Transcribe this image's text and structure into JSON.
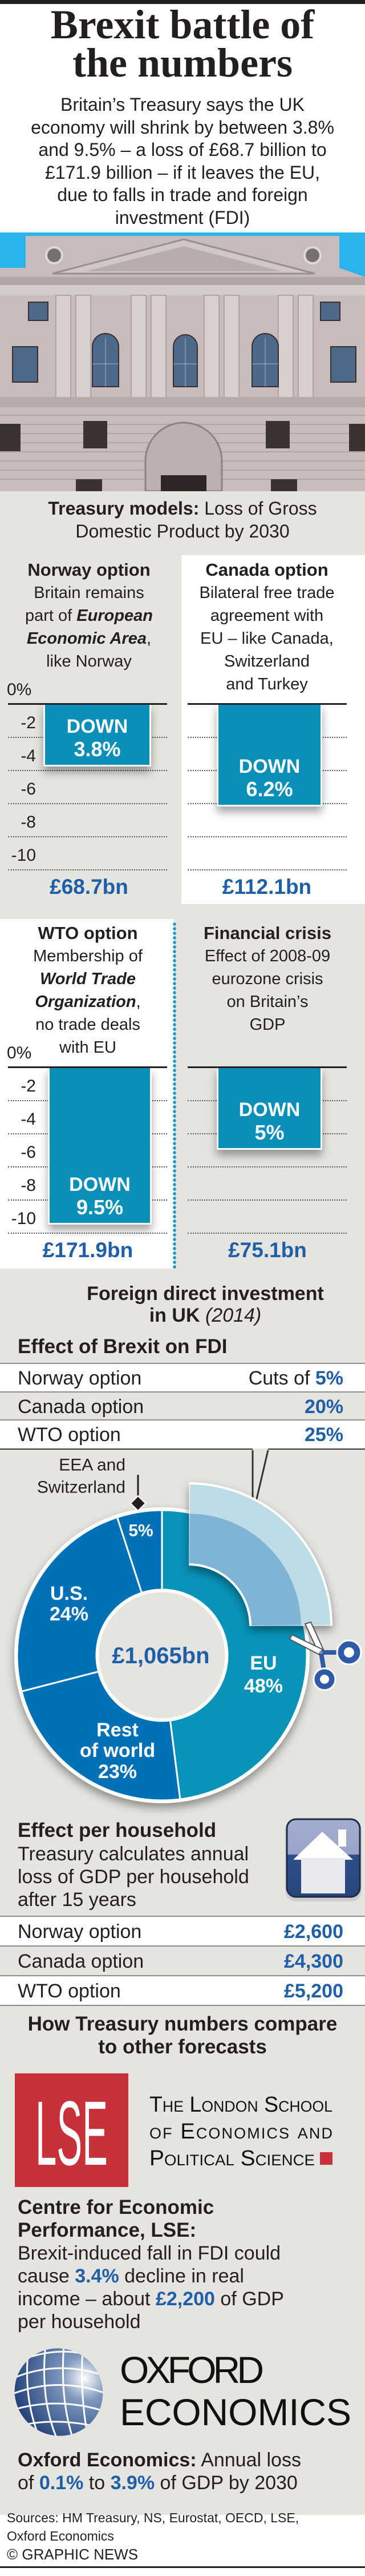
{
  "header": {
    "title_line1": "Brexit battle of",
    "title_line2": "the numbers",
    "subtitle_lines": [
      "Britain’s Treasury says the UK",
      "economy will shrink by between 3.8%",
      "and 9.5% – a loss of £68.7 billion to",
      "£171.9 billion – if it leaves the EU,",
      "due to falls in trade and foreign",
      "investment (FDI)"
    ]
  },
  "treasury": {
    "heading_bold": "Treasury models:",
    "heading_rest": "Loss of Gross",
    "heading_line2": "Domestic Product by 2030"
  },
  "panels": {
    "norway": {
      "title": "Norway option",
      "l1": "Britain remains",
      "l2a": "part of ",
      "l2b": "European",
      "l3a": "Economic Area",
      "l3b": ",",
      "l4": "like Norway"
    },
    "canada": {
      "title": "Canada option",
      "l1": "Bilateral free trade",
      "l2": "agreement with",
      "l3": "EU – like Canada,",
      "l4": "Switzerland",
      "l5": "and Turkey"
    },
    "wto": {
      "title": "WTO option",
      "l1": "Membership of",
      "l2": "World Trade",
      "l3a": "Organization",
      "l3b": ",",
      "l4": "no trade deals",
      "l5": "with EU"
    },
    "crisis": {
      "title": "Financial crisis",
      "l1": "Effect of 2008-09",
      "l2": "eurozone crisis",
      "l3": "on Britain’s",
      "l4": "GDP"
    }
  },
  "fdi": {
    "heading_line1": "Foreign direct investment",
    "heading_line2_bold": "in UK",
    "heading_line2_italic": "(2014)",
    "effect_heading": "Effect of Brexit on FDI",
    "rows": [
      {
        "label": "Norway option",
        "prefix": "Cuts of",
        "value": "5%"
      },
      {
        "label": "Canada option",
        "prefix": "",
        "value": "20%"
      },
      {
        "label": "WTO option",
        "prefix": "",
        "value": "25%"
      }
    ]
  },
  "household": {
    "heading": "Effect per household",
    "desc_lines": [
      "Treasury calculates annual",
      "loss of GDP per household",
      "after 15 years"
    ],
    "icon": "house-icon",
    "rows": [
      {
        "label": "Norway option",
        "value": "£2,600"
      },
      {
        "label": "Canada option",
        "value": "£4,300"
      },
      {
        "label": "WTO option",
        "value": "£5,200"
      }
    ]
  },
  "compare": {
    "heading_line1": "How Treasury numbers compare",
    "heading_line2": "to other forecasts",
    "lse_logo": {
      "mark": "LSE",
      "line1": "The London School",
      "line2": "of Economics and",
      "line3": "Political Science"
    },
    "lse_heading_line1": "Centre for Economic",
    "lse_heading_line2": "Performance, LSE:",
    "lse_l1": "Brexit-induced fall in FDI could",
    "lse_l2a": "cause",
    "lse_l2b": "3.4%",
    "lse_l2c": "decline in real",
    "lse_l3a": "income – about",
    "lse_l3b": "£2,200",
    "lse_l3c": "of GDP",
    "lse_l4": "per household",
    "oxford_logo": {
      "line1": "OXFORD",
      "line2": "ECONOMICS"
    },
    "oxford_bold": "Oxford Economics:",
    "oxford_l1": "Annual loss",
    "oxford_l2a": "of",
    "oxford_l2b": "0.1%",
    "oxford_l2c": "to",
    "oxford_l2d": "3.9%",
    "oxford_l2e": "of GDP by 2030"
  },
  "footer": {
    "sources_line1": "Sources: HM Treasury, NS, Eurostat, OECD, LSE,",
    "sources_line2": "Oxford Economics",
    "credit": "© GRAPHIC NEWS"
  },
  "colors": {
    "background_panel": "#e5e4df",
    "bar": "#0a90b8",
    "value_blue": "#1f5fa8",
    "donut_eu": "#0893b9",
    "donut_other": "#0071b7",
    "cut_outer": "#bedbe8",
    "cut_inner": "#80b4d4",
    "lse_red": "#c8303a",
    "divider_dots": "#1a9ac9"
  },
  "chart_data": [
    {
      "type": "bar",
      "categories": [
        "Norway option",
        "Canada option",
        "WTO option",
        "Financial crisis"
      ],
      "values": [
        -3.8,
        -6.2,
        -9.5,
        -5
      ],
      "bar_labels": [
        [
          "DOWN",
          "3.8%"
        ],
        [
          "DOWN",
          "6.2%"
        ],
        [
          "DOWN",
          "9.5%"
        ],
        [
          "DOWN",
          "5%"
        ]
      ],
      "amounts": [
        "£68.7bn",
        "£112.1bn",
        "£171.9bn",
        "£75.1bn"
      ],
      "ytick_labels": [
        "0%",
        "-2",
        "-4",
        "-6",
        "-8",
        "-10"
      ],
      "ylim": [
        -10,
        0
      ],
      "grid": true
    },
    {
      "type": "pie",
      "donut": true,
      "center_label": "£1,065bn",
      "categories": [
        "EU",
        "Rest of world",
        "U.S.",
        "EEA and Switzerland"
      ],
      "values": [
        48,
        23,
        24,
        5
      ],
      "label_lines": [
        [
          "EU"
        ],
        [
          "Rest",
          "of world"
        ],
        [
          "U.S."
        ],
        [
          "EEA and",
          "Switzerland"
        ]
      ],
      "value_labels": [
        "48%",
        "23%",
        "24%",
        "5%"
      ],
      "highlighted_cut": "EU"
    }
  ]
}
